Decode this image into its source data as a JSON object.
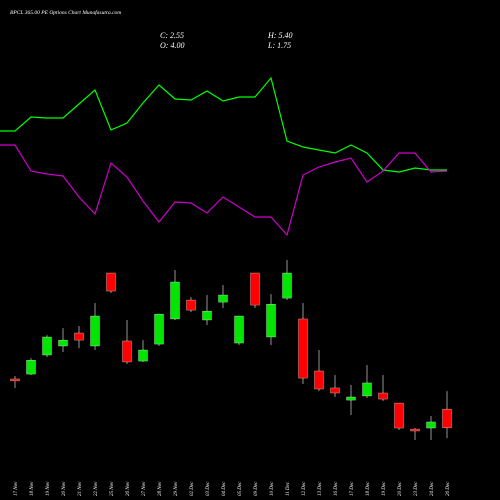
{
  "chart_data": {
    "type": "candlestick",
    "title": "BPCL 365.00 PE Options Chart Munafasutra.com",
    "stats": {
      "close": "C: 2.55",
      "high": "H: 5.40",
      "open": "O: 4.00",
      "low": "L: 1.75"
    },
    "categories": [
      "17 Nov",
      "18 Nov",
      "19 Nov",
      "20 Nov",
      "21 Nov",
      "22 Nov",
      "25 Nov",
      "26 Nov",
      "27 Nov",
      "28 Nov",
      "29 Nov",
      "02 Dec",
      "03 Dec",
      "04 Dec",
      "05 Dec",
      "09 Dec",
      "10 Dec",
      "11 Dec",
      "12 Dec",
      "13 Dec",
      "16 Dec",
      "17 Dec",
      "18 Dec",
      "19 Dec",
      "20 Dec",
      "23 Dec",
      "24 Dec",
      "26 Dec"
    ],
    "open": [
      6.34,
      6.72,
      8.2,
      8.9,
      9.91,
      8.9,
      14.57,
      9.29,
      7.73,
      9.05,
      11.0,
      12.47,
      10.92,
      12.31,
      9.13,
      14.57,
      9.6,
      12.62,
      11.0,
      6.96,
      5.64,
      4.7,
      5.02,
      5.25,
      4.47,
      2.45,
      2.53,
      4.0
    ],
    "high": [
      6.57,
      7.96,
      9.75,
      10.29,
      10.45,
      12.24,
      14.57,
      10.92,
      9.36,
      11.38,
      14.8,
      12.7,
      12.86,
      13.63,
      11.23,
      14.57,
      12.93,
      15.58,
      12.24,
      8.59,
      6.65,
      5.87,
      7.42,
      6.65,
      4.47,
      2.53,
      3.46,
      5.4
    ],
    "low": [
      5.64,
      6.65,
      8.04,
      8.43,
      8.74,
      8.59,
      13.01,
      7.5,
      7.66,
      8.9,
      10.92,
      11.54,
      10.53,
      11.85,
      8.97,
      11.85,
      8.97,
      12.47,
      5.95,
      5.4,
      4.94,
      3.54,
      4.86,
      4.63,
      2.38,
      1.6,
      1.6,
      1.75
    ],
    "close": [
      6.19,
      7.8,
      9.6,
      9.36,
      9.36,
      11.23,
      13.17,
      7.66,
      8.59,
      11.38,
      13.87,
      11.69,
      11.61,
      12.86,
      11.23,
      12.08,
      12.15,
      14.57,
      6.41,
      5.56,
      5.25,
      4.94,
      6.03,
      4.78,
      2.53,
      2.3,
      3.0,
      2.55
    ],
    "up_color": "#00e600",
    "down_color": "#ff0000",
    "series": [
      {
        "color": "#00ff00",
        "values": [
          169,
          183,
          182,
          182,
          196,
          210,
          170,
          177,
          197,
          215,
          201,
          200,
          209,
          199,
          203,
          203,
          222,
          159,
          153,
          150,
          147,
          155,
          147,
          130,
          128,
          132,
          130,
          130
        ]
      },
      {
        "color": "#cc00cc",
        "values": [
          155,
          129,
          126,
          124,
          103,
          86,
          137,
          123,
          99,
          78,
          98,
          97,
          87,
          103,
          93,
          83,
          83,
          65,
          125,
          133,
          138,
          142,
          118,
          129,
          147,
          147,
          128,
          129
        ]
      }
    ]
  }
}
